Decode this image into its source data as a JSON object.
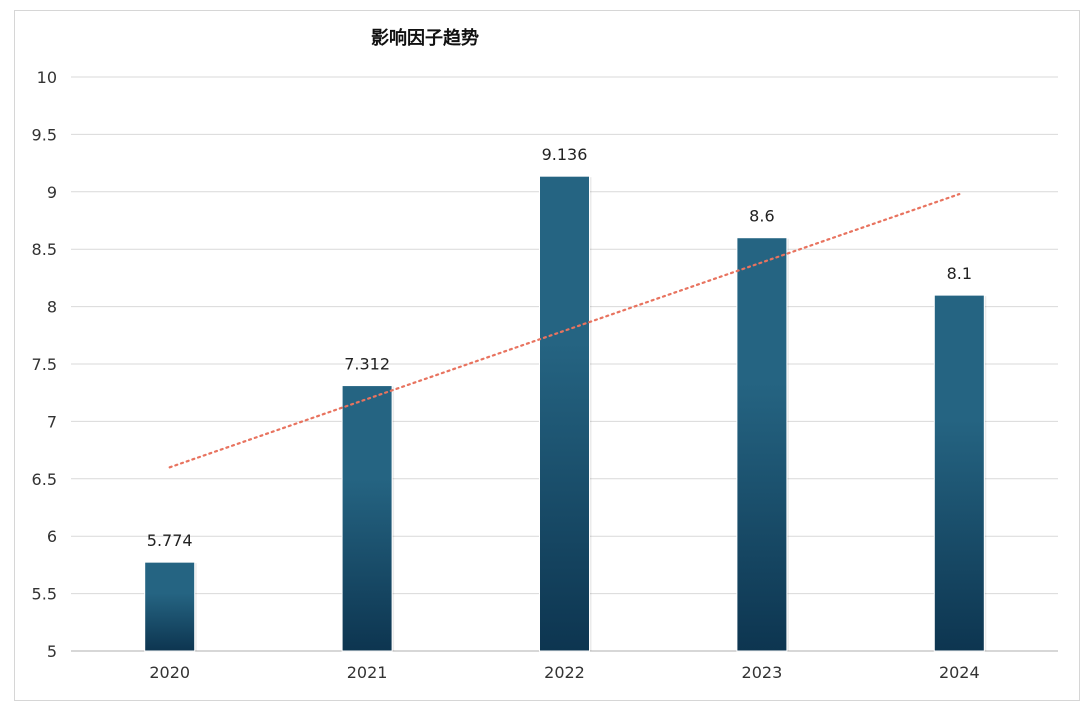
{
  "chart_data": {
    "type": "bar",
    "title": "影响因子趋势",
    "xlabel": "",
    "ylabel": "",
    "categories": [
      "2020",
      "2021",
      "2022",
      "2023",
      "2024"
    ],
    "values": [
      5.774,
      7.312,
      9.136,
      8.6,
      8.1
    ],
    "data_labels": [
      "5.774",
      "7.312",
      "9.136",
      "8.6",
      "8.1"
    ],
    "ylim": [
      5,
      10
    ],
    "yticks": [
      5,
      5.5,
      6,
      6.5,
      7,
      7.5,
      8,
      8.5,
      9,
      9.5,
      10
    ],
    "ytick_labels": [
      "5",
      "5.5",
      "6",
      "6.5",
      "7",
      "7.5",
      "8",
      "8.5",
      "9",
      "9.5",
      "10"
    ],
    "grid": true,
    "legend": "none",
    "trendline": {
      "type": "linear",
      "style": "dotted",
      "start_value": 6.6,
      "end_value": 8.98
    },
    "colors": {
      "bar_top": "#256482",
      "bar_bottom": "#0d3550",
      "trendline": "#e8735f",
      "grid": "#d9d9d9",
      "axis": "#bfbfbf"
    }
  }
}
